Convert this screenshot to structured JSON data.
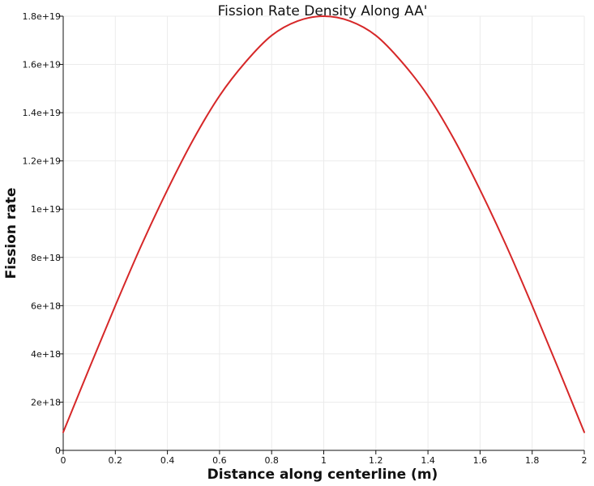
{
  "chart_data": {
    "type": "line",
    "title": "Fission Rate Density Along AA'",
    "xlabel": "Distance along centerline (m)",
    "ylabel": "Fission rate",
    "xlim": [
      0,
      2
    ],
    "ylim": [
      0,
      1.8e+19
    ],
    "x_ticks": [
      0,
      0.2,
      0.4,
      0.6,
      0.8,
      1,
      1.2,
      1.4,
      1.6,
      1.8,
      2
    ],
    "x_tick_labels": [
      "0",
      "0.2",
      "0.4",
      "0.6",
      "0.8",
      "1",
      "1.2",
      "1.4",
      "1.6",
      "1.8",
      "2"
    ],
    "y_ticks": [
      0,
      2e+18,
      4e+18,
      6e+18,
      8e+18,
      1e+19,
      1.2e+19,
      1.4e+19,
      1.6e+19,
      1.8e+19
    ],
    "y_tick_labels": [
      "0",
      "2e+18",
      "4e+18",
      "6e+18",
      "8e+18",
      "1e+19",
      "1.2e+19",
      "1.4e+19",
      "1.6e+19",
      "1.8e+19"
    ],
    "grid": true,
    "legend": "none",
    "line_color": "#d62728",
    "series": [
      {
        "x": [
          0,
          0.1,
          0.2,
          0.3,
          0.4,
          0.5,
          0.6,
          0.7,
          0.8,
          0.9,
          1.0,
          1.1,
          1.2,
          1.3,
          1.4,
          1.5,
          1.6,
          1.7,
          1.8,
          1.9,
          2.0
        ],
        "values": [
          7.5e+17,
          3.4e+18,
          6e+18,
          8.5e+18,
          1.08e+19,
          1.29e+19,
          1.47e+19,
          1.61e+19,
          1.72e+19,
          1.78e+19,
          1.8e+19,
          1.78e+19,
          1.72e+19,
          1.61e+19,
          1.47e+19,
          1.29e+19,
          1.08e+19,
          8.5e+18,
          6e+18,
          3.4e+18,
          7.5e+17
        ]
      }
    ]
  }
}
